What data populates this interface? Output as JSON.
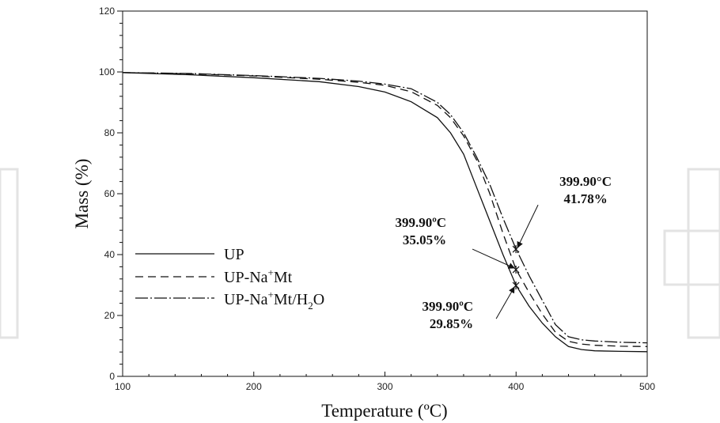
{
  "chart_data": {
    "type": "line",
    "xlabel": "Temperature (ºC)",
    "ylabel": "Mass (%)",
    "xlim": [
      100,
      500
    ],
    "ylim": [
      0,
      120
    ],
    "x_ticks": [
      100,
      200,
      300,
      400,
      500
    ],
    "y_ticks": [
      0,
      20,
      40,
      60,
      80,
      100,
      120
    ],
    "grid": false,
    "legend_position": "left",
    "series": [
      {
        "name": "UP",
        "legend_base": "UP",
        "legend_sup": "",
        "legend_tail": "",
        "legend_sub": "",
        "legend_end": "",
        "style": "solid",
        "x": [
          100,
          150,
          200,
          250,
          280,
          300,
          320,
          340,
          350,
          360,
          370,
          380,
          390,
          400,
          410,
          420,
          430,
          440,
          450,
          460,
          480,
          500
        ],
        "y": [
          99.8,
          99.1,
          98.1,
          96.8,
          95.2,
          93.4,
          90.2,
          85.0,
          80.0,
          73.0,
          62.0,
          51.0,
          40.0,
          29.85,
          23.0,
          17.5,
          13.0,
          9.8,
          8.8,
          8.4,
          8.2,
          8.1
        ]
      },
      {
        "name": "UP-Na+Mt",
        "legend_base": "UP-Na",
        "legend_sup": "+",
        "legend_tail": "Mt",
        "legend_sub": "",
        "legend_end": "",
        "style": "dashed",
        "x": [
          100,
          150,
          200,
          250,
          280,
          300,
          320,
          340,
          350,
          360,
          370,
          380,
          390,
          400,
          410,
          420,
          430,
          440,
          450,
          460,
          480,
          500
        ],
        "y": [
          99.8,
          99.4,
          98.7,
          97.6,
          96.6,
          95.6,
          93.5,
          89.0,
          85.0,
          79.0,
          71.0,
          60.0,
          47.0,
          35.05,
          27.5,
          20.5,
          14.5,
          11.5,
          10.6,
          10.2,
          9.9,
          9.8
        ]
      },
      {
        "name": "UP-Na+Mt/H2O",
        "legend_base": "UP-Na",
        "legend_sup": "+",
        "legend_tail": "Mt/H",
        "legend_sub": "2",
        "legend_end": "O",
        "style": "dashdot",
        "x": [
          100,
          150,
          200,
          250,
          280,
          300,
          320,
          340,
          350,
          360,
          370,
          380,
          390,
          400,
          410,
          420,
          430,
          440,
          450,
          460,
          480,
          500
        ],
        "y": [
          99.8,
          99.5,
          98.8,
          97.9,
          97.0,
          96.0,
          94.5,
          90.0,
          86.0,
          80.0,
          72.0,
          63.0,
          52.0,
          41.78,
          33.0,
          25.0,
          17.0,
          13.0,
          12.0,
          11.6,
          11.2,
          11.0
        ]
      }
    ],
    "annotations": [
      {
        "line1": "399.90°C",
        "line2": "41.78%",
        "x": 399.9,
        "y": 41.78
      },
      {
        "line1": "399.90ºC",
        "line2": "35.05%",
        "x": 399.9,
        "y": 35.05
      },
      {
        "line1": "399.90ºC",
        "line2": "29.85%",
        "x": 399.9,
        "y": 29.85
      }
    ]
  }
}
